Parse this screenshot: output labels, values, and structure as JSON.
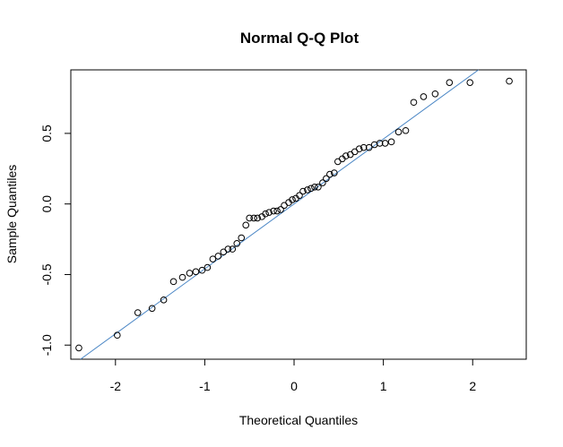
{
  "chart_data": {
    "type": "scatter",
    "title": "Normal Q-Q Plot",
    "xlabel": "Theoretical Quantiles",
    "ylabel": "Sample Quantiles",
    "xlim": [
      -2.5,
      2.6
    ],
    "ylim": [
      -1.1,
      0.95
    ],
    "xticks": [
      -2,
      -1,
      0,
      1,
      2
    ],
    "xtick_labels": [
      "-2",
      "-1",
      "0",
      "1",
      "2"
    ],
    "yticks": [
      -1.0,
      -0.5,
      0.0,
      0.5
    ],
    "ytick_labels": [
      "-1.0",
      "-0.5",
      "0.0",
      "0.5"
    ],
    "grid": false,
    "point_color": "#000000",
    "line_color": "#4a86c5",
    "reference_line": {
      "intercept": 0.0,
      "slope": 0.46
    },
    "x": [
      -2.41,
      -1.98,
      -1.75,
      -1.59,
      -1.46,
      -1.35,
      -1.25,
      -1.17,
      -1.1,
      -1.03,
      -0.97,
      -0.91,
      -0.85,
      -0.79,
      -0.74,
      -0.69,
      -0.64,
      -0.59,
      -0.54,
      -0.5,
      -0.45,
      -0.41,
      -0.36,
      -0.32,
      -0.28,
      -0.23,
      -0.19,
      -0.15,
      -0.11,
      -0.06,
      -0.02,
      0.02,
      0.06,
      0.1,
      0.15,
      0.19,
      0.23,
      0.27,
      0.32,
      0.36,
      0.4,
      0.45,
      0.49,
      0.54,
      0.58,
      0.63,
      0.68,
      0.73,
      0.78,
      0.84,
      0.9,
      0.96,
      1.02,
      1.09,
      1.17,
      1.25,
      1.34,
      1.45,
      1.58,
      1.74,
      1.97,
      2.41
    ],
    "y": [
      -1.02,
      -0.93,
      -0.77,
      -0.74,
      -0.68,
      -0.55,
      -0.52,
      -0.49,
      -0.48,
      -0.47,
      -0.45,
      -0.39,
      -0.37,
      -0.34,
      -0.32,
      -0.32,
      -0.28,
      -0.24,
      -0.15,
      -0.1,
      -0.1,
      -0.1,
      -0.09,
      -0.07,
      -0.06,
      -0.05,
      -0.05,
      -0.04,
      -0.01,
      0.01,
      0.03,
      0.04,
      0.06,
      0.09,
      0.1,
      0.11,
      0.12,
      0.12,
      0.15,
      0.18,
      0.21,
      0.22,
      0.3,
      0.32,
      0.34,
      0.35,
      0.37,
      0.39,
      0.4,
      0.4,
      0.42,
      0.43,
      0.43,
      0.44,
      0.51,
      0.52,
      0.72,
      0.76,
      0.78,
      0.86,
      0.86,
      0.87
    ]
  }
}
